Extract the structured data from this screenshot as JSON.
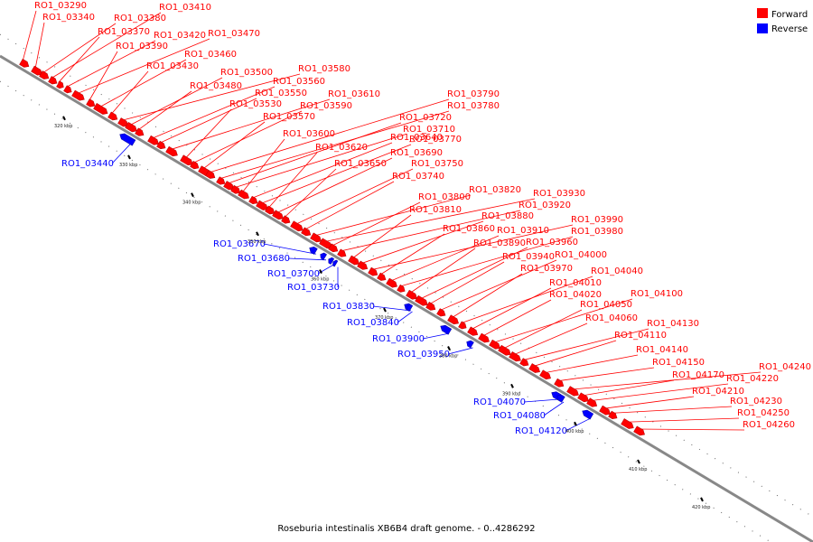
{
  "caption": "Roseburia intestinalis XB6B4 draft genome. - 0..4286292",
  "colors": {
    "forward": "#ff0000",
    "reverse": "#0000ff",
    "backbone": "#888888"
  },
  "legend": {
    "forward": "Forward",
    "reverse": "Reverse"
  },
  "ticks": [
    "320 kbp",
    "330 kbp",
    "340 kbp",
    "350 kbp",
    "360 kbp",
    "370 kbp",
    "380 kbp",
    "390 kbp",
    "400 kbp",
    "410 kbp",
    "420 kbp"
  ],
  "forward_genes": [
    "RO1_03290",
    "RO1_03340",
    "RO1_03380",
    "RO1_03410",
    "RO1_03370",
    "RO1_03420",
    "RO1_03470",
    "RO1_03390",
    "RO1_03460",
    "RO1_03430",
    "RO1_03580",
    "RO1_03500",
    "RO1_03480",
    "RO1_03560",
    "RO1_03550",
    "RO1_03610",
    "RO1_03530",
    "RO1_03590",
    "RO1_03570",
    "RO1_03790",
    "RO1_03780",
    "RO1_03720",
    "RO1_03710",
    "RO1_03600",
    "RO1_03640",
    "RO1_03770",
    "RO1_03620",
    "RO1_03690",
    "RO1_03650",
    "RO1_03750",
    "RO1_03740",
    "RO1_03820",
    "RO1_03930",
    "RO1_03800",
    "RO1_03920",
    "RO1_03810",
    "RO1_03880",
    "RO1_03990",
    "RO1_03860",
    "RO1_03910",
    "RO1_03980",
    "RO1_03890",
    "RO1_03960",
    "RO1_03940",
    "RO1_04000",
    "RO1_03970",
    "RO1_04040",
    "RO1_04010",
    "RO1_04020",
    "RO1_04100",
    "RO1_04050",
    "RO1_04060",
    "RO1_04130",
    "RO1_04110",
    "RO1_04140",
    "RO1_04150",
    "RO1_04240",
    "RO1_04170",
    "RO1_04220",
    "RO1_04210",
    "RO1_04230",
    "RO1_04250",
    "RO1_04260"
  ],
  "reverse_genes": [
    "RO1_03440",
    "RO1_03670",
    "RO1_03680",
    "RO1_03700",
    "RO1_03730",
    "RO1_03830",
    "RO1_03840",
    "RO1_03900",
    "RO1_03950",
    "RO1_04070",
    "RO1_04080",
    "RO1_04120"
  ]
}
